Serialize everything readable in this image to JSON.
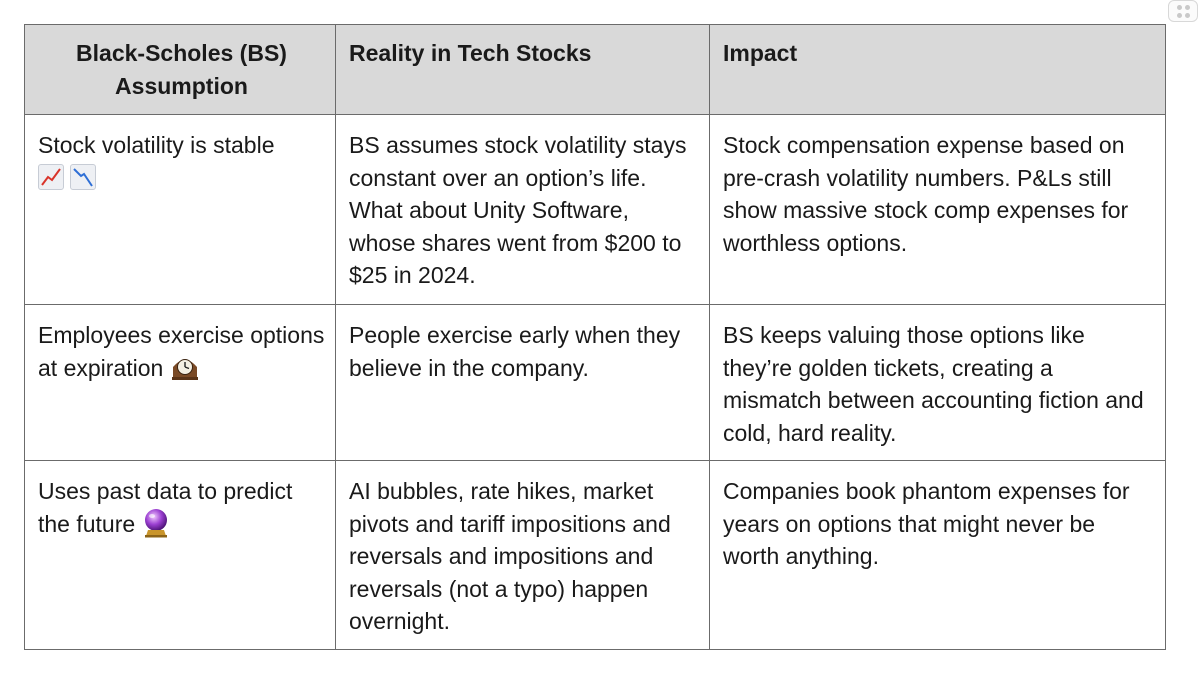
{
  "table": {
    "headers": [
      "Black-Scholes (BS) Assumption",
      "Reality in Tech Stocks",
      "Impact"
    ],
    "rows": [
      {
        "assumption": "Stock volatility is stable",
        "assumption_icons": [
          "chart-increasing-icon",
          "chart-decreasing-icon"
        ],
        "reality": "BS assumes stock volatility stays constant over an option’s life. What about Unity Software, whose shares went from $200 to $25 in 2024.",
        "impact": "Stock compensation expense based on pre-crash volatility numbers. P&Ls still show massive stock comp expenses for worthless options."
      },
      {
        "assumption": "Employees exercise options at expiration",
        "assumption_icons": [
          "mantelpiece-clock-icon"
        ],
        "reality": "People exercise early when they believe in the company.",
        "impact": "BS keeps valuing those options like they’re golden tickets, creating a mismatch between accounting fiction and cold, hard reality."
      },
      {
        "assumption": "Uses past data to predict the future",
        "assumption_icons": [
          "crystal-ball-icon"
        ],
        "reality": "AI bubbles, rate hikes, market pivots and tariff impositions and reversals and impositions and reversals (not a typo) happen overnight.",
        "impact": "Companies book phantom expenses for years on options that might never be worth anything."
      }
    ]
  },
  "colors": {
    "header_background": "#d9d9d9",
    "border": "#6b6b6b",
    "text": "#1a1a1a"
  }
}
